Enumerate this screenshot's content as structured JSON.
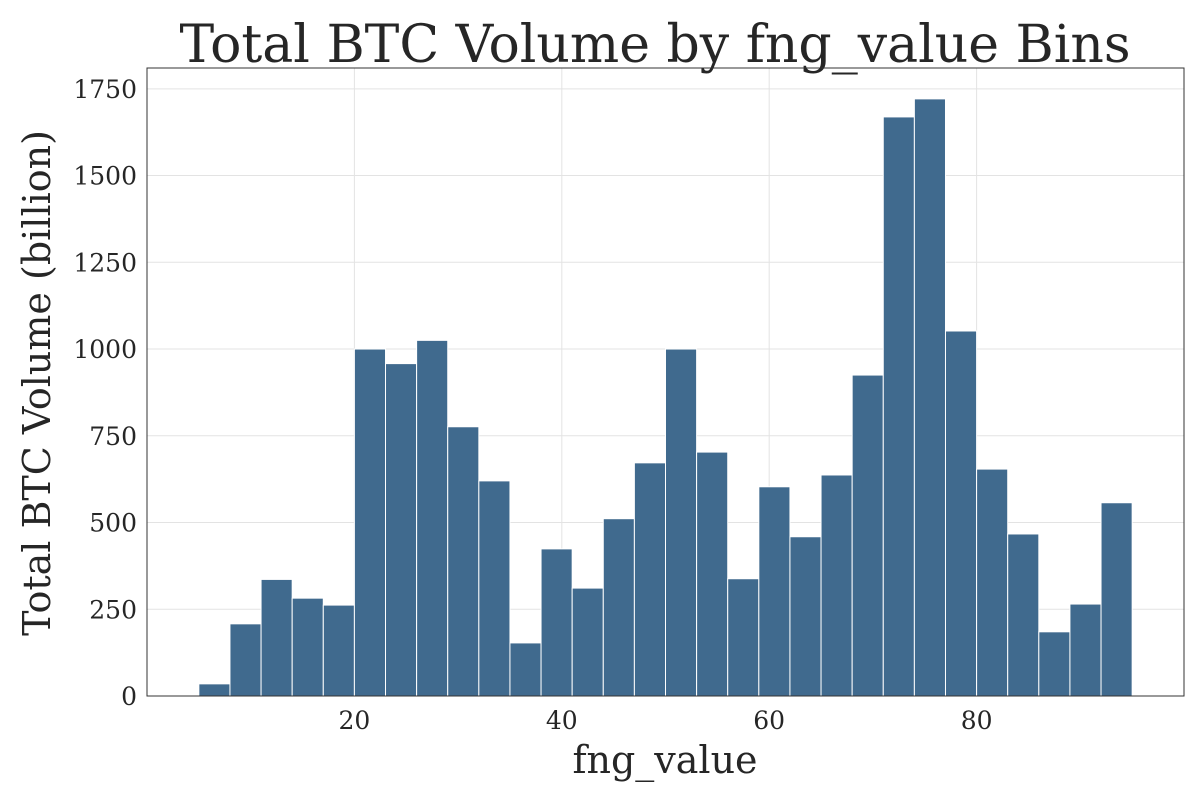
{
  "chart_data": {
    "type": "bar",
    "title": "Total BTC Volume by fng_value Bins",
    "xlabel": "fng_value",
    "ylabel": "Total BTC Volume (billion)",
    "xlim": [
      0,
      100
    ],
    "ylim": [
      0,
      1810
    ],
    "x_ticks": [
      20,
      40,
      60,
      80
    ],
    "y_ticks": [
      0,
      250,
      500,
      750,
      1000,
      1250,
      1500,
      1750
    ],
    "grid": true,
    "bar_color": "#406a8e",
    "bins": [
      {
        "start": 5.0,
        "end": 8.0,
        "value": 35
      },
      {
        "start": 8.0,
        "end": 11.0,
        "value": 208
      },
      {
        "start": 11.0,
        "end": 14.0,
        "value": 336
      },
      {
        "start": 14.0,
        "end": 17.0,
        "value": 282
      },
      {
        "start": 17.0,
        "end": 20.0,
        "value": 262
      },
      {
        "start": 20.0,
        "end": 23.0,
        "value": 1000
      },
      {
        "start": 23.0,
        "end": 26.0,
        "value": 958
      },
      {
        "start": 26.0,
        "end": 29.0,
        "value": 1025
      },
      {
        "start": 29.0,
        "end": 32.0,
        "value": 776
      },
      {
        "start": 32.0,
        "end": 35.0,
        "value": 620
      },
      {
        "start": 35.0,
        "end": 38.0,
        "value": 153
      },
      {
        "start": 38.0,
        "end": 41.0,
        "value": 424
      },
      {
        "start": 41.0,
        "end": 44.0,
        "value": 311
      },
      {
        "start": 44.0,
        "end": 47.0,
        "value": 511
      },
      {
        "start": 47.0,
        "end": 50.0,
        "value": 672
      },
      {
        "start": 50.0,
        "end": 53.0,
        "value": 1000
      },
      {
        "start": 53.0,
        "end": 56.0,
        "value": 703
      },
      {
        "start": 56.0,
        "end": 59.0,
        "value": 338
      },
      {
        "start": 59.0,
        "end": 62.0,
        "value": 603
      },
      {
        "start": 62.0,
        "end": 65.0,
        "value": 459
      },
      {
        "start": 65.0,
        "end": 68.0,
        "value": 637
      },
      {
        "start": 68.0,
        "end": 71.0,
        "value": 925
      },
      {
        "start": 71.0,
        "end": 74.0,
        "value": 1669
      },
      {
        "start": 74.0,
        "end": 77.0,
        "value": 1721
      },
      {
        "start": 77.0,
        "end": 80.0,
        "value": 1052
      },
      {
        "start": 80.0,
        "end": 83.0,
        "value": 654
      },
      {
        "start": 83.0,
        "end": 86.0,
        "value": 467
      },
      {
        "start": 86.0,
        "end": 89.0,
        "value": 185
      },
      {
        "start": 89.0,
        "end": 92.0,
        "value": 265
      },
      {
        "start": 92.0,
        "end": 95.0,
        "value": 557
      }
    ]
  }
}
